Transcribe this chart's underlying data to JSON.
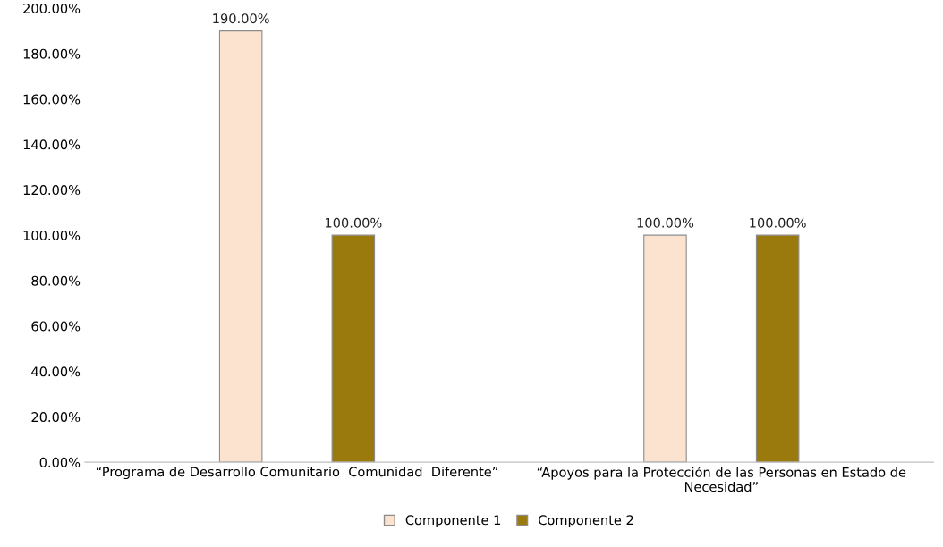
{
  "chart_data": {
    "type": "bar",
    "categories": [
      "“Programa de Desarrollo Comunitario  Comunidad  Diferente”",
      "“Apoyos para la Protección de las Personas en Estado de\nNecesidad”"
    ],
    "series": [
      {
        "name": "Componente 1",
        "color": "#fbe3d0",
        "values": [
          190,
          100
        ],
        "value_labels": [
          "190.00%",
          "100.00%"
        ]
      },
      {
        "name": "Componente 2",
        "color": "#9a7a0c",
        "values": [
          100,
          100
        ],
        "value_labels": [
          "100.00%",
          "100.00%"
        ]
      }
    ],
    "ylim": [
      0,
      200
    ],
    "yticks": [
      {
        "value": 0,
        "label": "0.00%"
      },
      {
        "value": 20,
        "label": "20.00%"
      },
      {
        "value": 40,
        "label": "40.00%"
      },
      {
        "value": 60,
        "label": "60.00%"
      },
      {
        "value": 80,
        "label": "80.00%"
      },
      {
        "value": 100,
        "label": "100.00%"
      },
      {
        "value": 120,
        "label": "120.00%"
      },
      {
        "value": 140,
        "label": "140.00%"
      },
      {
        "value": 160,
        "label": "160.00%"
      },
      {
        "value": 180,
        "label": "180.00%"
      },
      {
        "value": 200,
        "label": "200.00%"
      }
    ],
    "grid": false,
    "legend": "bottom"
  }
}
